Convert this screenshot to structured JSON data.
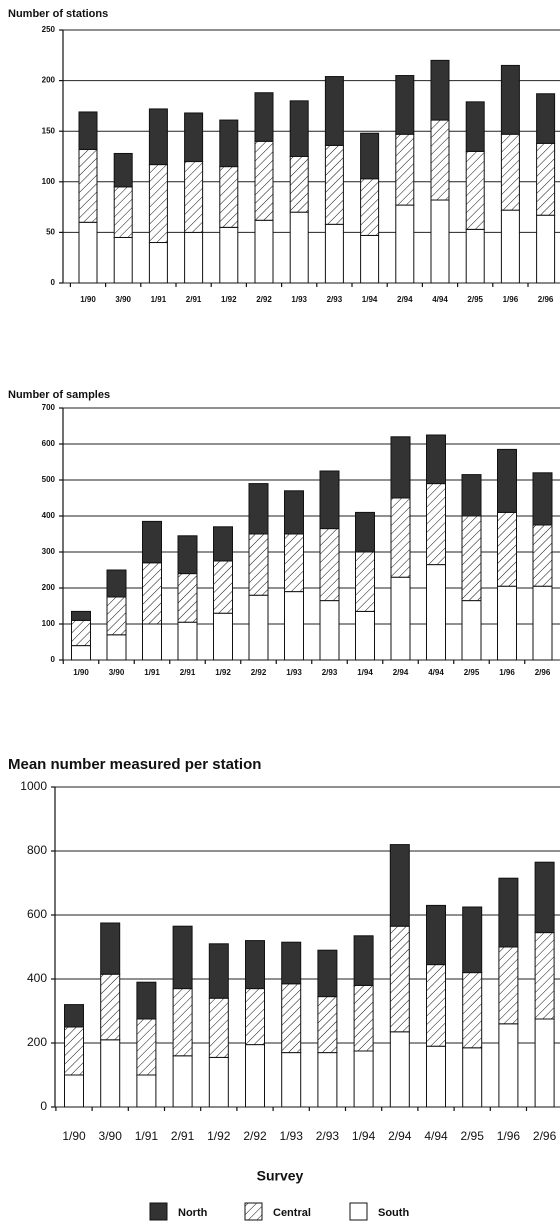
{
  "chart_data": [
    {
      "type": "stacked_bar",
      "title": "Number of stations",
      "categories": [
        "1/90",
        "3/90",
        "1/91",
        "2/91",
        "1/92",
        "2/92",
        "1/93",
        "2/93",
        "1/94",
        "2/94",
        "4/94",
        "2/95",
        "1/96",
        "2/96"
      ],
      "series": [
        {
          "name": "South",
          "color": "#ffffff",
          "values": [
            60,
            45,
            40,
            50,
            55,
            62,
            70,
            58,
            47,
            77,
            82,
            53,
            72,
            67
          ]
        },
        {
          "name": "Central",
          "color": "#ffffff",
          "hatch": true,
          "values": [
            72,
            50,
            77,
            70,
            60,
            78,
            55,
            78,
            56,
            70,
            79,
            77,
            75,
            71
          ]
        },
        {
          "name": "North",
          "color": "#333333",
          "values": [
            37,
            33,
            55,
            48,
            46,
            48,
            55,
            68,
            45,
            58,
            59,
            49,
            68,
            49
          ]
        }
      ],
      "ylim": [
        0,
        250
      ],
      "yticks": [
        0,
        50,
        100,
        150,
        200,
        250
      ],
      "grid": true
    },
    {
      "type": "stacked_bar",
      "title": "Number of samples",
      "categories": [
        "1/90",
        "3/90",
        "1/91",
        "2/91",
        "1/92",
        "2/92",
        "1/93",
        "2/93",
        "1/94",
        "2/94",
        "4/94",
        "2/95",
        "1/96",
        "2/96"
      ],
      "series": [
        {
          "name": "South",
          "color": "#ffffff",
          "values": [
            40,
            70,
            100,
            105,
            130,
            180,
            190,
            165,
            135,
            230,
            265,
            165,
            205,
            205
          ]
        },
        {
          "name": "Central",
          "color": "#ffffff",
          "hatch": true,
          "values": [
            70,
            105,
            170,
            135,
            145,
            170,
            160,
            200,
            165,
            220,
            225,
            235,
            205,
            170
          ]
        },
        {
          "name": "North",
          "color": "#333333",
          "values": [
            25,
            75,
            115,
            105,
            95,
            140,
            120,
            160,
            110,
            170,
            135,
            115,
            175,
            145
          ]
        }
      ],
      "ylim": [
        0,
        700
      ],
      "yticks": [
        0,
        100,
        200,
        300,
        400,
        500,
        600,
        700
      ],
      "grid": true
    },
    {
      "type": "stacked_bar",
      "title": "Mean number measured per station",
      "categories": [
        "1/90",
        "3/90",
        "1/91",
        "2/91",
        "1/92",
        "2/92",
        "1/93",
        "2/93",
        "1/94",
        "2/94",
        "4/94",
        "2/95",
        "1/96",
        "2/96"
      ],
      "series": [
        {
          "name": "South",
          "color": "#ffffff",
          "values": [
            100,
            210,
            100,
            160,
            155,
            195,
            170,
            170,
            175,
            235,
            190,
            185,
            260,
            275
          ]
        },
        {
          "name": "Central",
          "color": "#ffffff",
          "hatch": true,
          "values": [
            150,
            205,
            175,
            210,
            185,
            175,
            215,
            175,
            205,
            330,
            255,
            235,
            240,
            270
          ]
        },
        {
          "name": "North",
          "color": "#333333",
          "values": [
            70,
            160,
            115,
            195,
            170,
            150,
            130,
            145,
            155,
            255,
            185,
            205,
            215,
            220
          ]
        }
      ],
      "ylim": [
        0,
        1000
      ],
      "yticks": [
        0,
        200,
        400,
        600,
        800,
        1000
      ],
      "grid": true,
      "legend_title": "Survey",
      "legend": "bottom"
    }
  ]
}
